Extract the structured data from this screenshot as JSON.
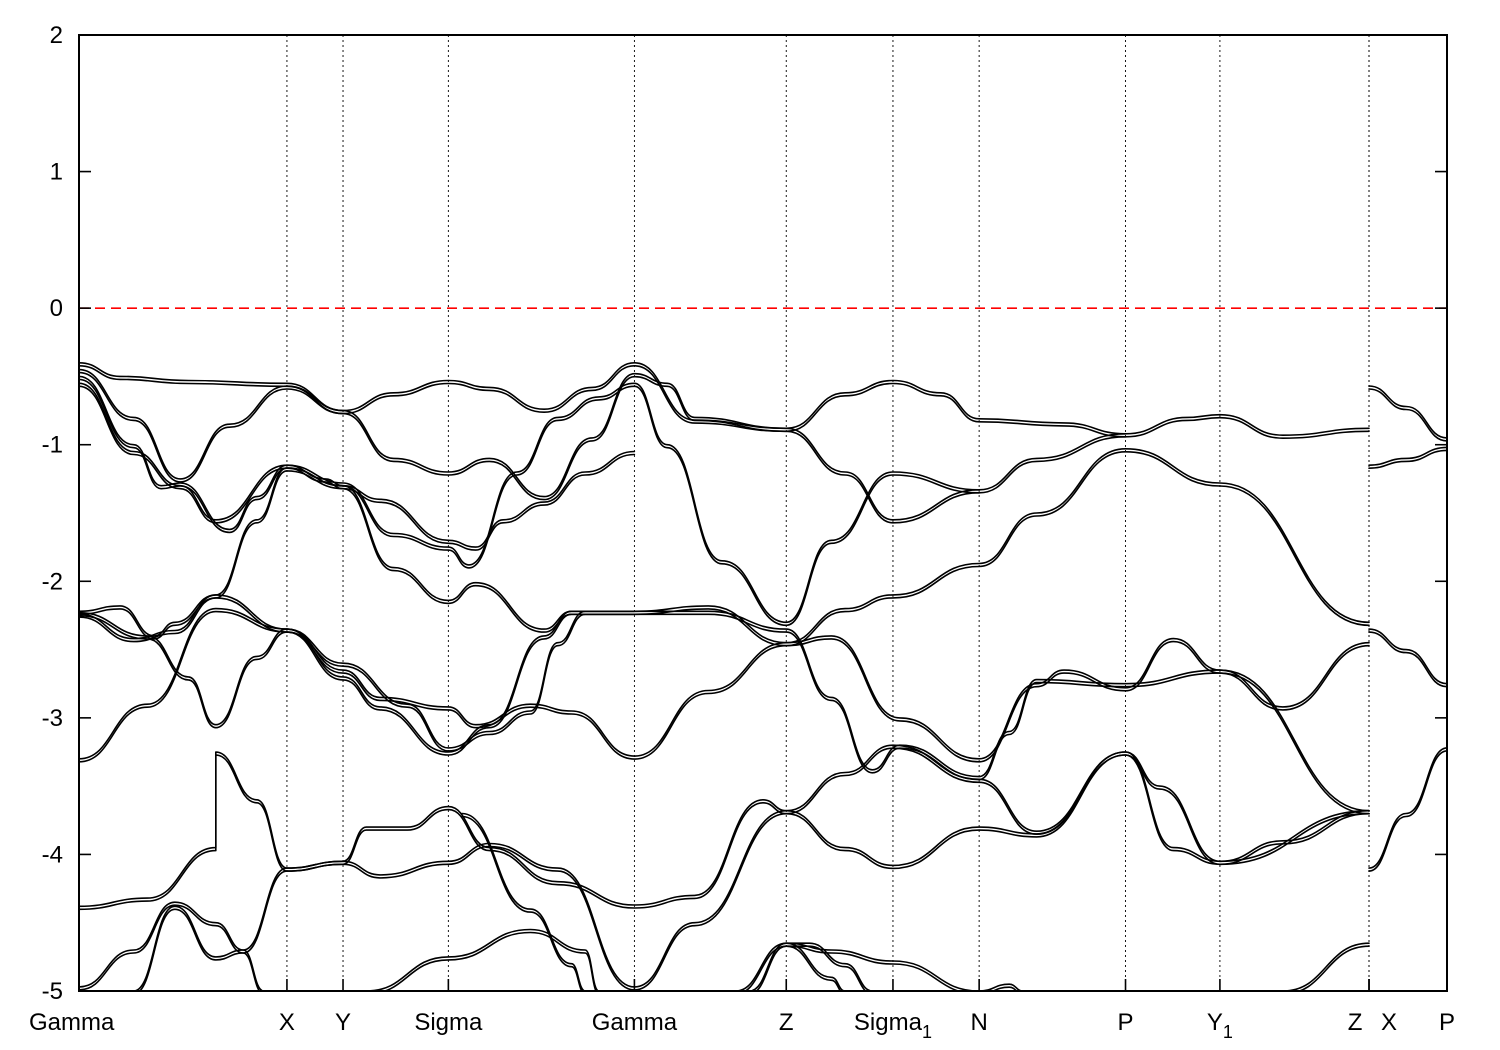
{
  "chart_data": {
    "type": "line",
    "title": "",
    "xlabel": "",
    "ylabel": "",
    "ylim": [
      -5,
      2
    ],
    "yticks": [
      2,
      1,
      0,
      -1,
      -2,
      -3,
      -4,
      -5
    ],
    "ytick_labels": [
      "2",
      "1",
      "0",
      "-1",
      "-2",
      "-3",
      "-4",
      "-5"
    ],
    "xlim": [
      0,
      1.0
    ],
    "kpoints": [
      {
        "label": "Gamma",
        "sub": "",
        "x": 0.0
      },
      {
        "label": "X",
        "sub": "",
        "x": 0.152
      },
      {
        "label": "Y",
        "sub": "",
        "x": 0.193
      },
      {
        "label": "Sigma",
        "sub": "",
        "x": 0.27
      },
      {
        "label": "Gamma",
        "sub": "",
        "x": 0.406
      },
      {
        "label": "Z",
        "sub": "",
        "x": 0.517
      },
      {
        "label": "Sigma",
        "sub": "1",
        "x": 0.595
      },
      {
        "label": "N",
        "sub": "",
        "x": 0.658
      },
      {
        "label": "P",
        "sub": "",
        "x": 0.765
      },
      {
        "label": "Y",
        "sub": "1",
        "x": 0.834
      },
      {
        "label": "Z",
        "sub": "",
        "x": 0.943
      },
      {
        "label": "X",
        "sub": "",
        "x": 0.943
      },
      {
        "label": "P",
        "sub": "",
        "x": 1.0
      }
    ],
    "fermi_level": 0,
    "grid": false,
    "colors": {
      "bands": "#000000",
      "fermi": "#ff0000"
    },
    "series": [
      {
        "values": [
          [
            0.0,
            -0.4
          ],
          [
            0.03,
            -0.5
          ],
          [
            0.08,
            -0.53
          ],
          [
            0.152,
            -0.55
          ],
          [
            0.193,
            -0.75
          ],
          [
            0.23,
            -0.62
          ],
          [
            0.27,
            -0.53
          ],
          [
            0.3,
            -0.58
          ],
          [
            0.34,
            -0.74
          ],
          [
            0.375,
            -0.58
          ],
          [
            0.406,
            -0.4
          ],
          [
            0.45,
            -0.82
          ],
          [
            0.517,
            -0.88
          ],
          [
            0.56,
            -0.62
          ],
          [
            0.595,
            -0.53
          ],
          [
            0.63,
            -0.62
          ],
          [
            0.658,
            -0.81
          ],
          [
            0.72,
            -0.84
          ],
          [
            0.765,
            -0.92
          ],
          [
            0.81,
            -0.8
          ],
          [
            0.834,
            -0.78
          ],
          [
            0.88,
            -0.93
          ],
          [
            0.943,
            -0.88
          ]
        ]
      },
      {
        "values": [
          [
            0.0,
            -0.45
          ],
          [
            0.04,
            -0.8
          ],
          [
            0.074,
            -1.25
          ],
          [
            0.11,
            -0.85
          ],
          [
            0.152,
            -0.57
          ],
          [
            0.193,
            -0.75
          ],
          [
            0.23,
            -1.1
          ],
          [
            0.27,
            -1.2
          ],
          [
            0.3,
            -1.1
          ],
          [
            0.34,
            -1.38
          ],
          [
            0.375,
            -0.95
          ],
          [
            0.406,
            -0.48
          ],
          [
            0.43,
            -0.55
          ],
          [
            0.45,
            -0.8
          ],
          [
            0.517,
            -0.88
          ],
          [
            0.56,
            -1.2
          ],
          [
            0.595,
            -1.55
          ],
          [
            0.658,
            -1.33
          ],
          [
            0.7,
            -1.1
          ],
          [
            0.765,
            -0.92
          ]
        ]
      },
      {
        "values": [
          [
            0.0,
            -0.5
          ],
          [
            0.04,
            -1.0
          ],
          [
            0.06,
            -1.3
          ],
          [
            0.074,
            -1.28
          ],
          [
            0.11,
            -1.62
          ],
          [
            0.13,
            -1.38
          ],
          [
            0.152,
            -1.15
          ],
          [
            0.193,
            -1.28
          ],
          [
            0.23,
            -1.65
          ],
          [
            0.27,
            -1.75
          ],
          [
            0.285,
            -1.88
          ],
          [
            0.32,
            -1.2
          ],
          [
            0.35,
            -0.8
          ],
          [
            0.38,
            -0.65
          ],
          [
            0.406,
            -0.55
          ],
          [
            0.43,
            -1.0
          ],
          [
            0.47,
            -1.85
          ],
          [
            0.517,
            -2.3
          ],
          [
            0.55,
            -1.7
          ],
          [
            0.595,
            -1.2
          ],
          [
            0.658,
            -1.33
          ]
        ]
      },
      {
        "values": [
          [
            0.0,
            -0.55
          ],
          [
            0.04,
            -1.05
          ],
          [
            0.074,
            -1.3
          ],
          [
            0.1,
            -1.55
          ],
          [
            0.152,
            -1.15
          ],
          [
            0.18,
            -1.25
          ],
          [
            0.193,
            -1.3
          ],
          [
            0.22,
            -1.4
          ],
          [
            0.27,
            -1.7
          ],
          [
            0.29,
            -1.75
          ],
          [
            0.31,
            -1.55
          ],
          [
            0.34,
            -1.42
          ],
          [
            0.37,
            -1.2
          ],
          [
            0.406,
            -1.05
          ]
        ]
      },
      {
        "values": [
          [
            0.0,
            -2.22
          ],
          [
            0.03,
            -2.18
          ],
          [
            0.055,
            -2.4
          ],
          [
            0.07,
            -2.3
          ],
          [
            0.1,
            -2.1
          ],
          [
            0.13,
            -1.55
          ],
          [
            0.152,
            -1.17
          ],
          [
            0.193,
            -1.3
          ],
          [
            0.23,
            -1.9
          ],
          [
            0.27,
            -2.14
          ],
          [
            0.29,
            -2.01
          ],
          [
            0.34,
            -2.35
          ],
          [
            0.36,
            -2.22
          ],
          [
            0.406,
            -2.22
          ],
          [
            0.46,
            -2.18
          ],
          [
            0.517,
            -2.45
          ],
          [
            0.56,
            -2.2
          ],
          [
            0.595,
            -2.1
          ],
          [
            0.658,
            -1.87
          ],
          [
            0.7,
            -1.5
          ],
          [
            0.765,
            -1.03
          ],
          [
            0.834,
            -1.28
          ],
          [
            0.943,
            -2.3
          ]
        ]
      },
      {
        "values": [
          [
            0.0,
            -2.24
          ],
          [
            0.04,
            -2.42
          ],
          [
            0.07,
            -2.36
          ],
          [
            0.1,
            -2.1
          ],
          [
            0.152,
            -2.35
          ],
          [
            0.193,
            -2.6
          ],
          [
            0.24,
            -2.9
          ],
          [
            0.27,
            -3.22
          ],
          [
            0.3,
            -3.1
          ],
          [
            0.33,
            -2.95
          ],
          [
            0.35,
            -2.45
          ],
          [
            0.37,
            -2.22
          ],
          [
            0.406,
            -2.22
          ]
        ]
      },
      {
        "values": [
          [
            0.0,
            -2.23
          ],
          [
            0.05,
            -2.4
          ],
          [
            0.08,
            -2.7
          ],
          [
            0.1,
            -3.05
          ],
          [
            0.13,
            -2.55
          ],
          [
            0.152,
            -2.35
          ],
          [
            0.193,
            -2.65
          ],
          [
            0.22,
            -2.85
          ],
          [
            0.27,
            -2.92
          ],
          [
            0.29,
            -3.05
          ],
          [
            0.33,
            -2.9
          ],
          [
            0.36,
            -2.95
          ],
          [
            0.406,
            -3.28
          ],
          [
            0.46,
            -2.8
          ],
          [
            0.517,
            -2.45
          ],
          [
            0.55,
            -2.4
          ],
          [
            0.6,
            -3.0
          ],
          [
            0.658,
            -3.3
          ],
          [
            0.7,
            -2.75
          ],
          [
            0.72,
            -2.65
          ],
          [
            0.765,
            -2.78
          ],
          [
            0.8,
            -2.42
          ],
          [
            0.834,
            -2.65
          ],
          [
            0.88,
            -2.92
          ],
          [
            0.943,
            -2.45
          ]
        ]
      },
      {
        "values": [
          [
            0.0,
            -3.3
          ],
          [
            0.05,
            -2.9
          ],
          [
            0.1,
            -2.2
          ],
          [
            0.152,
            -2.35
          ],
          [
            0.193,
            -2.7
          ],
          [
            0.22,
            -2.92
          ],
          [
            0.27,
            -3.25
          ],
          [
            0.3,
            -3.05
          ],
          [
            0.34,
            -2.4
          ],
          [
            0.36,
            -2.22
          ],
          [
            0.406,
            -2.22
          ],
          [
            0.46,
            -2.22
          ],
          [
            0.517,
            -2.35
          ],
          [
            0.55,
            -2.85
          ],
          [
            0.58,
            -3.38
          ],
          [
            0.6,
            -3.2
          ],
          [
            0.658,
            -3.43
          ],
          [
            0.68,
            -3.1
          ],
          [
            0.7,
            -2.72
          ],
          [
            0.765,
            -2.75
          ],
          [
            0.834,
            -2.65
          ],
          [
            0.943,
            -3.68
          ]
        ]
      },
      {
        "values": [
          [
            0.0,
            -4.38
          ],
          [
            0.05,
            -4.32
          ],
          [
            0.1,
            -3.95
          ],
          [
            0.1,
            -3.25
          ],
          [
            0.13,
            -3.6
          ],
          [
            0.152,
            -4.1
          ],
          [
            0.193,
            -4.05
          ],
          [
            0.21,
            -3.8
          ],
          [
            0.24,
            -3.8
          ],
          [
            0.27,
            -3.65
          ],
          [
            0.3,
            -3.95
          ],
          [
            0.35,
            -4.2
          ],
          [
            0.406,
            -4.37
          ],
          [
            0.45,
            -4.3
          ],
          [
            0.5,
            -3.6
          ],
          [
            0.517,
            -3.68
          ],
          [
            0.56,
            -3.4
          ],
          [
            0.595,
            -3.2
          ],
          [
            0.658,
            -3.45
          ],
          [
            0.7,
            -3.83
          ],
          [
            0.765,
            -3.25
          ],
          [
            0.79,
            -3.5
          ],
          [
            0.834,
            -4.05
          ],
          [
            0.943,
            -3.68
          ]
        ]
      },
      {
        "values": [
          [
            0.0,
            -4.97
          ],
          [
            0.04,
            -4.7
          ],
          [
            0.07,
            -4.35
          ],
          [
            0.1,
            -4.5
          ],
          [
            0.12,
            -4.7
          ],
          [
            0.152,
            -4.1
          ],
          [
            0.193,
            -4.05
          ],
          [
            0.22,
            -4.15
          ],
          [
            0.27,
            -4.05
          ],
          [
            0.3,
            -3.92
          ],
          [
            0.35,
            -4.1
          ],
          [
            0.406,
            -4.97
          ],
          [
            0.45,
            -4.5
          ],
          [
            0.517,
            -3.68
          ],
          [
            0.56,
            -3.95
          ],
          [
            0.595,
            -4.08
          ],
          [
            0.658,
            -3.8
          ],
          [
            0.7,
            -3.85
          ],
          [
            0.765,
            -3.25
          ],
          [
            0.8,
            -3.95
          ],
          [
            0.834,
            -4.05
          ],
          [
            0.88,
            -3.9
          ],
          [
            0.943,
            -3.68
          ]
        ]
      },
      {
        "values": [
          [
            0.04,
            -5.0
          ],
          [
            0.07,
            -4.38
          ],
          [
            0.1,
            -4.75
          ],
          [
            0.12,
            -4.7
          ],
          [
            0.135,
            -5.0
          ]
        ]
      },
      {
        "values": [
          [
            0.21,
            -5.0
          ],
          [
            0.27,
            -4.75
          ],
          [
            0.33,
            -4.55
          ],
          [
            0.37,
            -4.7
          ],
          [
            0.38,
            -5.0
          ]
        ]
      },
      {
        "values": [
          [
            0.28,
            -3.7
          ],
          [
            0.33,
            -4.4
          ],
          [
            0.36,
            -4.8
          ],
          [
            0.37,
            -5.0
          ]
        ]
      },
      {
        "values": [
          [
            0.48,
            -5.0
          ],
          [
            0.517,
            -4.65
          ],
          [
            0.55,
            -4.7
          ],
          [
            0.595,
            -4.78
          ],
          [
            0.658,
            -5.0
          ],
          [
            0.69,
            -5.0
          ]
        ]
      },
      {
        "values": [
          [
            0.49,
            -5.0
          ],
          [
            0.517,
            -4.65
          ],
          [
            0.55,
            -4.9
          ],
          [
            0.56,
            -5.0
          ]
        ]
      },
      {
        "values": [
          [
            0.88,
            -5.0
          ],
          [
            0.943,
            -4.65
          ]
        ]
      },
      {
        "values": [
          [
            0.943,
            -0.57
          ],
          [
            0.97,
            -0.72
          ],
          [
            1.0,
            -0.95
          ]
        ]
      },
      {
        "values": [
          [
            0.943,
            -1.15
          ],
          [
            0.97,
            -1.1
          ],
          [
            1.0,
            -1.02
          ]
        ]
      },
      {
        "values": [
          [
            0.943,
            -2.35
          ],
          [
            0.97,
            -2.5
          ],
          [
            1.0,
            -2.75
          ]
        ]
      },
      {
        "values": [
          [
            0.943,
            -4.1
          ],
          [
            0.97,
            -3.7
          ],
          [
            1.0,
            -3.22
          ]
        ]
      },
      {
        "values": [
          [
            0.517,
            -4.65
          ],
          [
            0.534,
            -4.65
          ],
          [
            0.56,
            -4.8
          ],
          [
            0.58,
            -5.0
          ]
        ]
      },
      {
        "values": [
          [
            0.658,
            -5.0
          ],
          [
            0.68,
            -4.95
          ],
          [
            0.69,
            -5.0
          ]
        ]
      }
    ]
  }
}
